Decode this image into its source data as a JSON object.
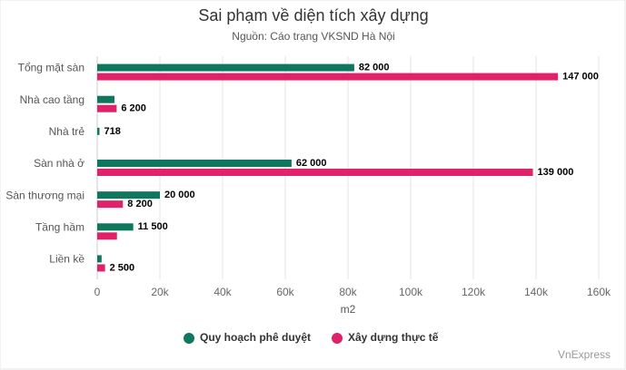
{
  "chart_data": {
    "type": "hbar",
    "title": "Sai phạm về diện tích xây dựng",
    "subtitle": "Nguồn: Cáo trạng VKSND Hà Nội",
    "x_label": "m2",
    "source": "VnExpress",
    "categories": [
      "Tổng mặt sàn",
      "Nhà cao tầng",
      "Nhà trẻ",
      "Sàn nhà ở",
      "Sàn thương mại",
      "Tầng hầm",
      "Liền kề"
    ],
    "series": [
      {
        "name": "Quy hoạch phê duyệt",
        "color": "#10775f",
        "values": [
          82000,
          5500,
          718,
          62000,
          20000,
          11500,
          1400
        ],
        "value_labels": [
          "82 000",
          null,
          "718",
          "62 000",
          "20 000",
          "11 500",
          null
        ]
      },
      {
        "name": "Xây dựng thực tế",
        "color": "#e0226a",
        "values": [
          147000,
          6200,
          null,
          139000,
          8200,
          6300,
          2500
        ],
        "value_labels": [
          "147 000",
          "6 200",
          null,
          "139 000",
          "8 200",
          null,
          "2 500"
        ]
      }
    ],
    "xlim": [
      0,
      160000
    ],
    "xticks": [
      0,
      {
        "value": 20000,
        "label": "20k"
      },
      {
        "value": 40000,
        "label": "40k"
      },
      {
        "value": 60000,
        "label": "60k"
      },
      {
        "value": 80000,
        "label": "80k"
      },
      {
        "value": 100000,
        "label": "100k"
      },
      {
        "value": 120000,
        "label": "120k"
      },
      {
        "value": 140000,
        "label": "140k"
      },
      {
        "value": 160000,
        "label": "160k"
      }
    ],
    "grid": true
  }
}
